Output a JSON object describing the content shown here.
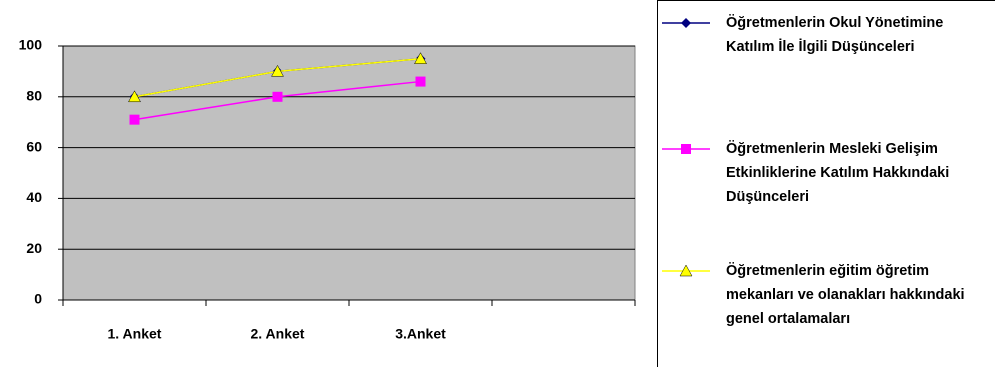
{
  "chart_data": {
    "type": "line",
    "categories": [
      "1. Anket",
      "2. Anket",
      "3.Anket",
      null
    ],
    "series": [
      {
        "name": "Öğretmenlerin Okul Yönetimine Katılım İle İlgili Düşünceleri",
        "color": "#000080",
        "marker": "diamond",
        "values": [
          80,
          90,
          95,
          null
        ]
      },
      {
        "name": "Öğretmenlerin Mesleki Gelişim Etkinliklerine Katılım Hakkındaki Düşünceleri",
        "color": "#ff00ff",
        "marker": "square",
        "values": [
          71,
          80,
          86,
          null
        ]
      },
      {
        "name": "Öğretmenlerin eğitim öğretim mekanları ve olanakları hakkındaki genel ortalamaları",
        "color": "#ffff00",
        "marker": "triangle",
        "values": [
          80,
          90,
          95,
          null
        ]
      }
    ],
    "ylim": [
      0,
      100
    ],
    "yticks": [
      0,
      20,
      40,
      60,
      80,
      100
    ],
    "grid": true,
    "legend": "right"
  }
}
